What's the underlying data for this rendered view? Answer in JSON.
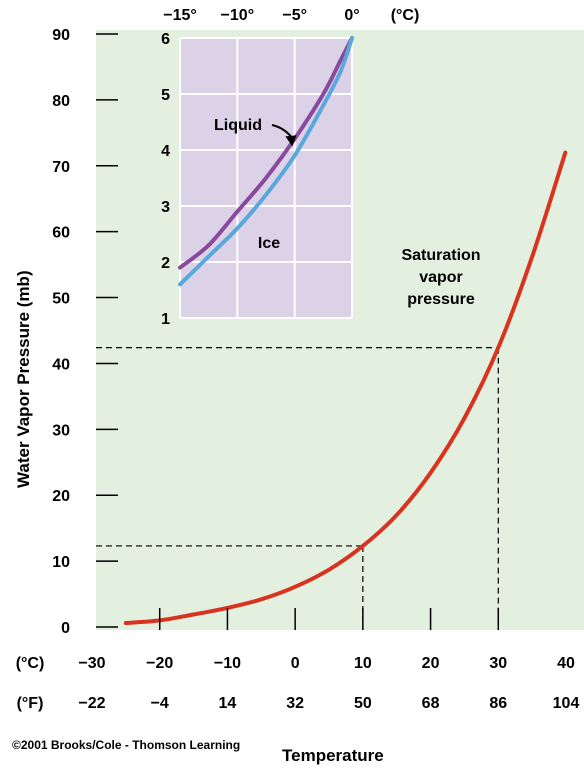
{
  "chart_data": [
    {
      "type": "line",
      "title": "",
      "xlabel": "Temperature",
      "ylabel": "Water Vapor Pressure (mb)",
      "x_unit_c": "(°C)",
      "x_unit_f": "(°F)",
      "xlim": [
        -30,
        40
      ],
      "ylim": [
        0,
        90
      ],
      "x_ticks_c": [
        "−30",
        "−20",
        "−10",
        "0",
        "10",
        "20",
        "30",
        "40"
      ],
      "x_ticks_f": [
        "−22",
        "−4",
        "14",
        "32",
        "50",
        "68",
        "86",
        "104"
      ],
      "y_ticks": [
        "0",
        "10",
        "20",
        "30",
        "40",
        "50",
        "60",
        "70",
        "80",
        "90"
      ],
      "series": [
        {
          "name": "",
          "color": "#d9331f",
          "x": [
            -25,
            -20,
            -15,
            -10,
            -5,
            0,
            5,
            10,
            15,
            20,
            25,
            30,
            35,
            39.9
          ],
          "y": [
            0.6,
            1.0,
            1.9,
            2.9,
            4.2,
            6.1,
            8.7,
            12.3,
            17.0,
            23.4,
            31.7,
            42.4,
            56.2,
            72.0
          ]
        }
      ],
      "annotations": [
        {
          "text_lines": [
            "Saturation",
            "vapor",
            "pressure"
          ]
        }
      ],
      "reference_lines": [
        {
          "x": 10,
          "y": 12.3
        },
        {
          "x": 30,
          "y": 42.4
        }
      ],
      "background_color": "#e3f0e0",
      "copyright": "©2001 Brooks/Cole - Thomson Learning"
    },
    {
      "type": "line",
      "title": "",
      "x_unit": "(°C)",
      "xlim": [
        -15,
        0
      ],
      "ylim": [
        1,
        6
      ],
      "x_ticks": [
        "−15°",
        "−10°",
        "−5°",
        "0°"
      ],
      "y_ticks": [
        "1",
        "2",
        "3",
        "4",
        "5",
        "6"
      ],
      "grid": true,
      "background_color": "#dbd2e8",
      "series": [
        {
          "name": "Liquid",
          "color": "#8a4a9c",
          "x": [
            -15,
            -12.5,
            -10,
            -7.5,
            -5,
            -2.5,
            -1,
            0
          ],
          "y": [
            1.9,
            2.3,
            2.9,
            3.5,
            4.2,
            5.0,
            5.6,
            6.0
          ]
        },
        {
          "name": "Ice",
          "color": "#5aa7dc",
          "x": [
            -15,
            -12.5,
            -10,
            -7.5,
            -5,
            -2.5,
            -1,
            0
          ],
          "y": [
            1.6,
            2.1,
            2.6,
            3.2,
            3.9,
            4.8,
            5.4,
            6.0
          ]
        }
      ]
    }
  ]
}
